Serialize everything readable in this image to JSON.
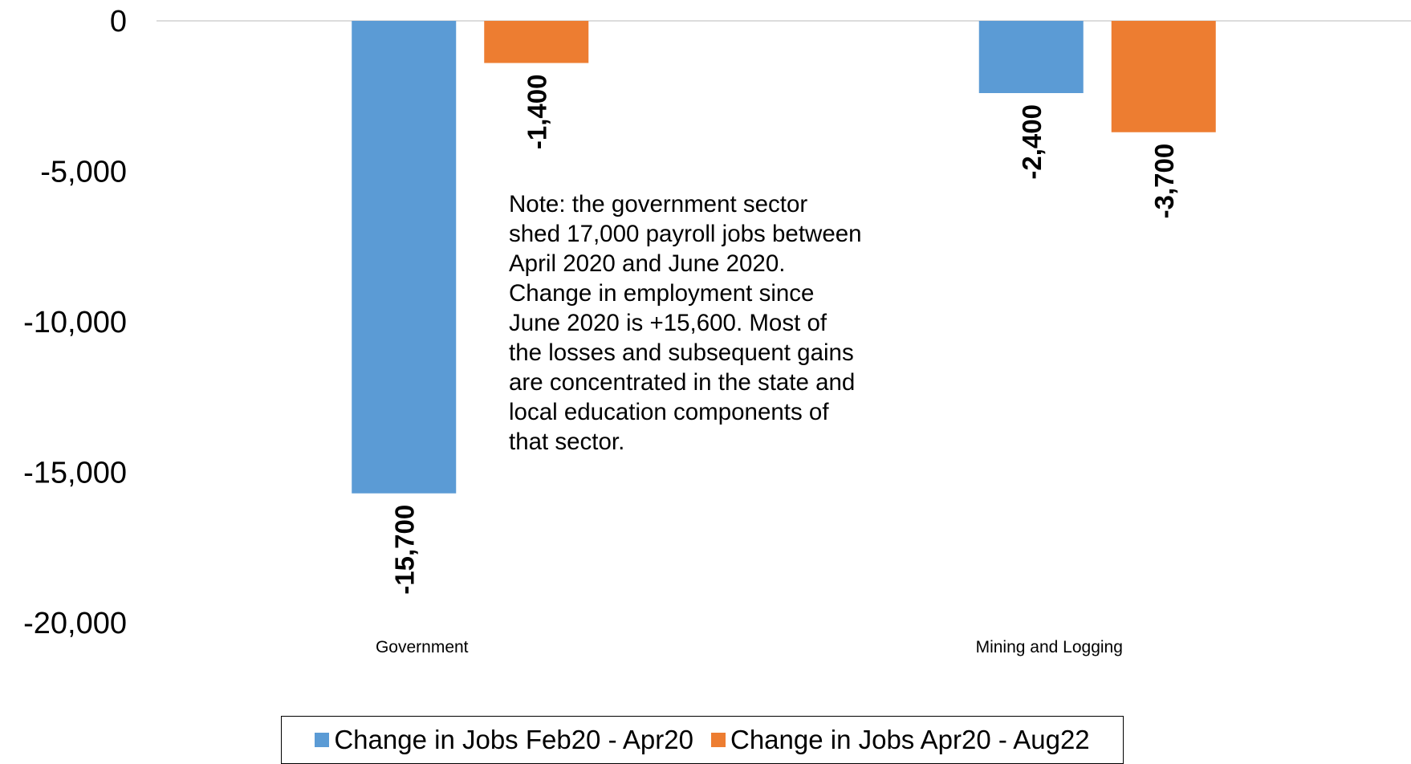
{
  "chart_data": {
    "type": "bar",
    "categories": [
      "Government",
      "Mining and Logging"
    ],
    "series": [
      {
        "name": "Change in Jobs Feb20 - Apr20",
        "color": "#5b9bd5",
        "values": [
          -15700,
          -2400
        ],
        "labels": [
          "-15,700",
          "-2,400"
        ]
      },
      {
        "name": "Change in Jobs Apr20 - Aug22",
        "color": "#ed7d31",
        "values": [
          -1400,
          -3700
        ],
        "labels": [
          "-1,400",
          "-3,700"
        ]
      }
    ],
    "ylim": [
      -20000,
      0
    ],
    "yticks": [
      0,
      -5000,
      -10000,
      -15000,
      -20000
    ],
    "ytick_labels": [
      "0",
      "-5,000",
      "-10,000",
      "-15,000",
      "-20,000"
    ],
    "grid": false,
    "legend_position": "bottom",
    "annotation": "Note: the government sector shed 17,000 payroll jobs between April 2020 and June 2020. Change in employment since June 2020 is +15,600. Most of the losses and subsequent gains are concentrated in the state and local education components of that sector."
  }
}
